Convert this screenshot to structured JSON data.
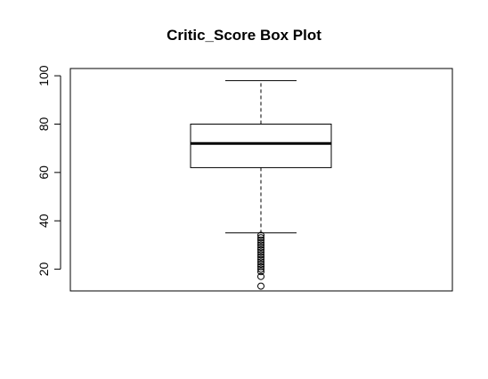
{
  "chart_data": {
    "type": "boxplot",
    "title": "Critic_Score Box Plot",
    "xlabel": "",
    "ylabel": "",
    "ylim": [
      11,
      103
    ],
    "yticks": [
      20,
      40,
      60,
      80,
      100
    ],
    "grid": false,
    "box": {
      "whisker_low": 35,
      "q1": 62,
      "median": 72,
      "q3": 80,
      "whisker_high": 98
    },
    "outliers": [
      34,
      33,
      32,
      31,
      30,
      29,
      28,
      27,
      26,
      25,
      24,
      23,
      22,
      21,
      20,
      19,
      17,
      13
    ]
  }
}
